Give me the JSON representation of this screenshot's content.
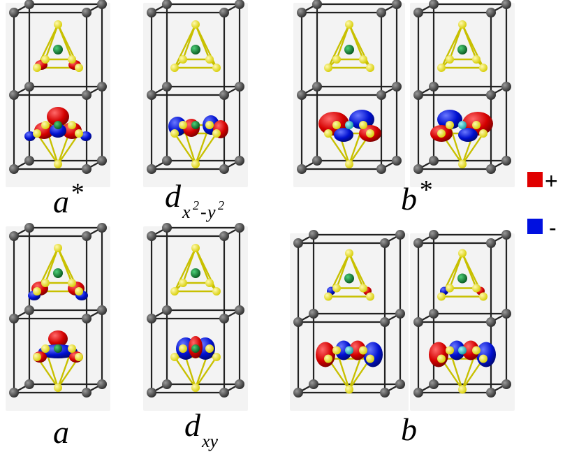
{
  "colors": {
    "positive": "#e00000",
    "negative": "#0010e0",
    "anion": "#f2ea00",
    "metal_center": "#0a7a2a",
    "metal_center_alt": "#1fc0c8",
    "lattice_atom": "#4a4a4a",
    "bond": "#222222",
    "cage_bond": "#c8c000",
    "panel_bg": "#f3f3f3"
  },
  "panels": [
    {
      "id": "a-star-1",
      "orbital": "mixed",
      "center": "green"
    },
    {
      "id": "dx2y2",
      "orbital": "dx2",
      "center": "green"
    },
    {
      "id": "b-star-1",
      "orbital": "mixedb",
      "center": "cyan"
    },
    {
      "id": "b-star-2",
      "orbital": "mixedb2",
      "center": "cyan"
    },
    {
      "id": "a-1",
      "orbital": "a",
      "center": "green"
    },
    {
      "id": "dxy",
      "orbital": "dxy",
      "center": "green"
    },
    {
      "id": "b-1",
      "orbital": "b",
      "center": "cyan"
    },
    {
      "id": "b-2",
      "orbital": "b2",
      "center": "cyan"
    }
  ],
  "labels": {
    "a_star": {
      "base": "a",
      "suffix": "*"
    },
    "dx2y2": {
      "base": "d",
      "sub": "x",
      "sup1": "2",
      "dash": "-",
      "sub2": "y",
      "sup2": "2"
    },
    "b_star": {
      "base": "b",
      "suffix": "*"
    },
    "a": {
      "base": "a"
    },
    "dxy": {
      "base": "d",
      "sub": "xy"
    },
    "b": {
      "base": "b"
    }
  },
  "legend": {
    "plus_label": "+",
    "minus_label": "-"
  }
}
